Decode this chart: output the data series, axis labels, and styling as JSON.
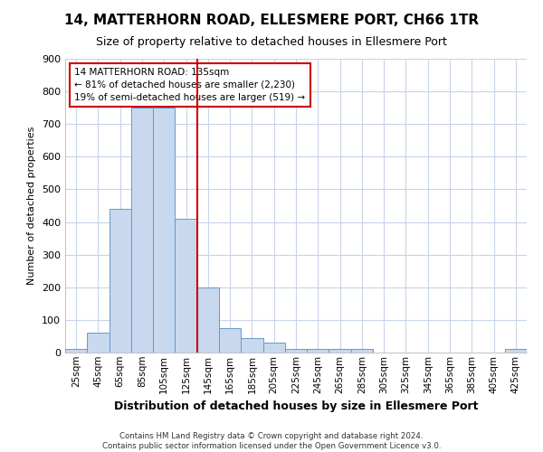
{
  "title": "14, MATTERHORN ROAD, ELLESMERE PORT, CH66 1TR",
  "subtitle": "Size of property relative to detached houses in Ellesmere Port",
  "xlabel": "Distribution of detached houses by size in Ellesmere Port",
  "ylabel": "Number of detached properties",
  "footer_line1": "Contains HM Land Registry data © Crown copyright and database right 2024.",
  "footer_line2": "Contains public sector information licensed under the Open Government Licence v3.0.",
  "bar_labels": [
    "25sqm",
    "45sqm",
    "65sqm",
    "85sqm",
    "105sqm",
    "125sqm",
    "145sqm",
    "165sqm",
    "185sqm",
    "205sqm",
    "225sqm",
    "245sqm",
    "265sqm",
    "285sqm",
    "305sqm",
    "325sqm",
    "345sqm",
    "365sqm",
    "385sqm",
    "405sqm",
    "425sqm"
  ],
  "bar_values": [
    10,
    60,
    440,
    750,
    750,
    410,
    200,
    75,
    45,
    30,
    10,
    10,
    10,
    10,
    0,
    0,
    0,
    0,
    0,
    0,
    10
  ],
  "bar_color": "#c8d8ee",
  "bar_edge_color": "#6699cc",
  "background_color": "#ffffff",
  "grid_color": "#c8d4e8",
  "annotation_text": "14 MATTERHORN ROAD: 135sqm\n← 81% of detached houses are smaller (2,230)\n19% of semi-detached houses are larger (519) →",
  "annotation_box_color": "#ffffff",
  "annotation_box_edge": "#cc0000",
  "vline_x": 5.5,
  "vline_color": "#cc0000",
  "ylim": [
    0,
    900
  ],
  "yticks": [
    0,
    100,
    200,
    300,
    400,
    500,
    600,
    700,
    800,
    900
  ],
  "title_fontsize": 11,
  "subtitle_fontsize": 9,
  "ylabel_fontsize": 8,
  "xlabel_fontsize": 9
}
